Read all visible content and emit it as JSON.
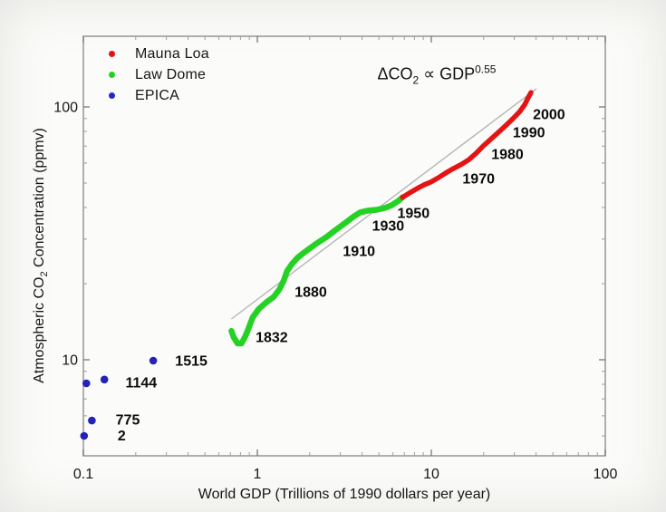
{
  "window": {
    "background": "#fbfbf9"
  },
  "legend": {
    "items": [
      {
        "label": "Mauna Loa",
        "color": "#e01414"
      },
      {
        "label": "Law Dome",
        "color": "#24d124"
      },
      {
        "label": "EPICA",
        "color": "#2525cc"
      }
    ]
  },
  "annotation": {
    "prefix": "ΔCO",
    "sub": "2",
    "mid": " ∝ GDP",
    "sup": "0.55"
  },
  "axes": {
    "x_label": "World GDP (Trillions of 1990 dollars per year)",
    "y_label_prefix": "Atmospheric CO",
    "y_label_sub": "2",
    "y_label_suffix": " Concentration (ppmv)"
  },
  "chart_data": {
    "type": "line",
    "title": "",
    "xlabel": "World GDP (Trillions of 1990 dollars per year)",
    "ylabel": "Atmospheric CO2 Concentration (ppmv)",
    "x_scale": "log",
    "y_scale": "log",
    "xlim": [
      0.1,
      100
    ],
    "ylim": [
      4.2,
      190
    ],
    "grid": false,
    "legend_position": "top-left-inside",
    "x_ticks": [
      {
        "value": 0.1,
        "label": "0.1"
      },
      {
        "value": 1,
        "label": "1"
      },
      {
        "value": 10,
        "label": "10"
      },
      {
        "value": 100,
        "label": "100"
      }
    ],
    "y_ticks": [
      {
        "value": 10,
        "label": "10"
      },
      {
        "value": 100,
        "label": "100"
      }
    ],
    "annotation_text": "ΔCO2 ∝ GDP^0.55",
    "fit_line": {
      "color": "#b5b5b5",
      "points": [
        [
          0.71,
          14.5
        ],
        [
          40.2,
          118
        ]
      ]
    },
    "series": [
      {
        "name": "Law Dome",
        "type": "line",
        "color": "#24d124",
        "width": 6.5,
        "points": [
          [
            0.71,
            13.0
          ],
          [
            0.73,
            12.3
          ],
          [
            0.77,
            11.6
          ],
          [
            0.81,
            11.6
          ],
          [
            0.85,
            12.3
          ],
          [
            0.89,
            13.3
          ],
          [
            0.94,
            14.7
          ],
          [
            1.02,
            15.9
          ],
          [
            1.13,
            16.9
          ],
          [
            1.24,
            17.7
          ],
          [
            1.34,
            19.0
          ],
          [
            1.42,
            20.6
          ],
          [
            1.48,
            22.4
          ],
          [
            1.58,
            23.9
          ],
          [
            1.7,
            25.3
          ],
          [
            1.89,
            26.8
          ],
          [
            2.15,
            28.6
          ],
          [
            2.5,
            30.6
          ],
          [
            2.85,
            32.8
          ],
          [
            3.21,
            34.8
          ],
          [
            3.57,
            36.8
          ],
          [
            3.91,
            38.3
          ],
          [
            4.32,
            38.9
          ],
          [
            4.86,
            39.2
          ],
          [
            5.44,
            39.9
          ],
          [
            5.9,
            40.8
          ],
          [
            6.43,
            42.4
          ],
          [
            6.82,
            43.9
          ]
        ]
      },
      {
        "name": "Mauna Loa",
        "type": "line",
        "color": "#e51414",
        "width": 5.5,
        "points": [
          [
            6.82,
            43.9
          ],
          [
            7.5,
            45.7
          ],
          [
            8.34,
            47.7
          ],
          [
            9.15,
            49.3
          ],
          [
            9.97,
            50.5
          ],
          [
            10.9,
            52.3
          ],
          [
            11.9,
            54.4
          ],
          [
            13.3,
            56.9
          ],
          [
            14.9,
            59.3
          ],
          [
            16.4,
            61.8
          ],
          [
            18.1,
            65.6
          ],
          [
            19.9,
            70.1
          ],
          [
            21.9,
            74.4
          ],
          [
            24.1,
            78.9
          ],
          [
            26.5,
            83.8
          ],
          [
            29.2,
            89.4
          ],
          [
            32.1,
            95.5
          ],
          [
            34.4,
            102
          ],
          [
            36.1,
            109
          ],
          [
            37.4,
            114
          ]
        ]
      },
      {
        "name": "EPICA",
        "type": "scatter",
        "color": "#2323b8",
        "radius": 4.3,
        "points": [
          [
            0.101,
            5.0
          ],
          [
            0.112,
            5.75
          ],
          [
            0.104,
            8.07
          ],
          [
            0.132,
            8.35
          ],
          [
            0.252,
            9.92
          ]
        ]
      }
    ],
    "year_labels": [
      {
        "text": "2000",
        "x": 47.5,
        "y": 93.6
      },
      {
        "text": "1990",
        "x": 36.4,
        "y": 79.4
      },
      {
        "text": "1980",
        "x": 27.4,
        "y": 65.1
      },
      {
        "text": "1970",
        "x": 18.7,
        "y": 52.1
      },
      {
        "text": "1950",
        "x": 7.9,
        "y": 38.1
      },
      {
        "text": "1930",
        "x": 5.65,
        "y": 33.9
      },
      {
        "text": "1910",
        "x": 3.84,
        "y": 26.9
      },
      {
        "text": "1880",
        "x": 2.03,
        "y": 18.6
      },
      {
        "text": "1832",
        "x": 1.21,
        "y": 12.3
      },
      {
        "text": "1515",
        "x": 0.417,
        "y": 9.93
      },
      {
        "text": "1144",
        "x": 0.215,
        "y": 8.15
      },
      {
        "text": "775",
        "x": 0.18,
        "y": 5.81
      },
      {
        "text": "2",
        "x": 0.166,
        "y": 5.03
      }
    ]
  }
}
